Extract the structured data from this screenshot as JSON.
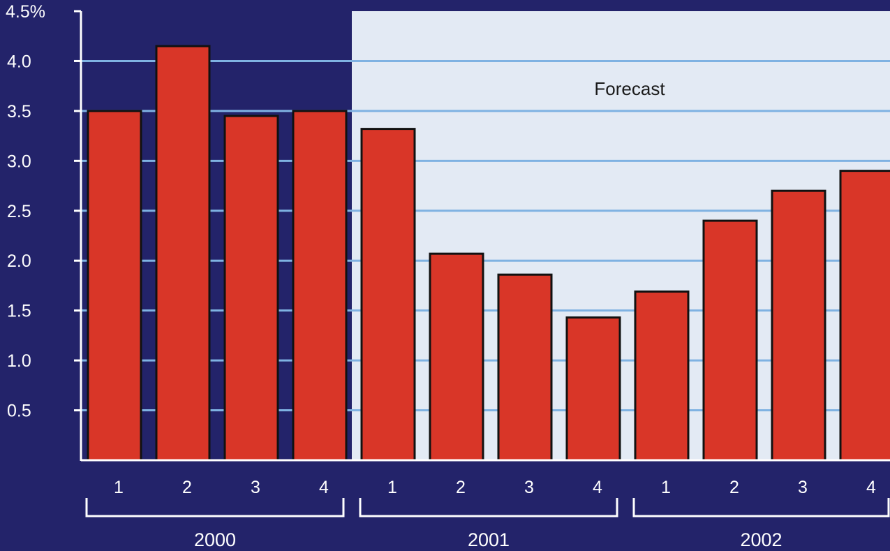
{
  "colors": {
    "background": "#23236a",
    "forecast_region": "#e3eaf4",
    "bar_fill": "#d93628",
    "bar_stroke": "#111111",
    "gridline": "#7fb2e2",
    "axis": "#ffffff",
    "label_text": "#ffffff",
    "forecast_label": "#1a1a1a"
  },
  "chart_data": {
    "type": "bar",
    "title": "",
    "xlabel": "",
    "ylabel": "",
    "ylim": [
      0,
      4.5
    ],
    "y_ticks": [
      {
        "value": 0.5,
        "label": "0.5"
      },
      {
        "value": 1.0,
        "label": "1.0"
      },
      {
        "value": 1.5,
        "label": "1.5"
      },
      {
        "value": 2.0,
        "label": "2.0"
      },
      {
        "value": 2.5,
        "label": "2.5"
      },
      {
        "value": 3.0,
        "label": "3.0"
      },
      {
        "value": 3.5,
        "label": "3.5"
      },
      {
        "value": 4.0,
        "label": "4.0"
      },
      {
        "value": 4.5,
        "label": "4.5%"
      }
    ],
    "grid": true,
    "forecast_label": "Forecast",
    "forecast_start_index": 4,
    "groups": [
      {
        "label": "2000",
        "quarters": [
          "1",
          "2",
          "3",
          "4"
        ],
        "values": [
          3.5,
          4.15,
          3.45,
          3.5
        ]
      },
      {
        "label": "2001",
        "quarters": [
          "1",
          "2",
          "3",
          "4"
        ],
        "values": [
          3.32,
          2.07,
          1.86,
          1.43
        ]
      },
      {
        "label": "2002",
        "quarters": [
          "1",
          "2",
          "3",
          "4"
        ],
        "values": [
          1.69,
          2.4,
          2.7,
          2.9
        ]
      }
    ]
  }
}
